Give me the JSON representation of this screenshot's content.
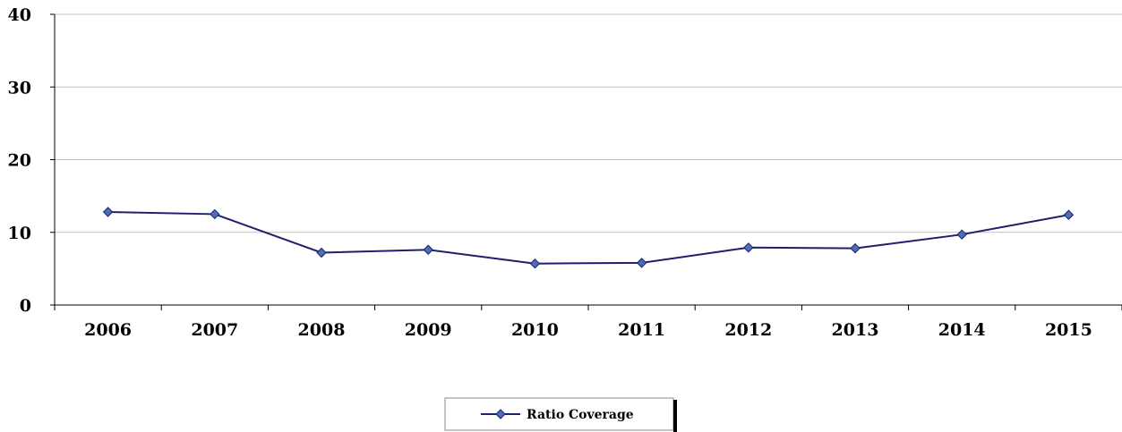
{
  "chart_data": {
    "type": "line",
    "categories": [
      "2006",
      "2007",
      "2008",
      "2009",
      "2010",
      "2011",
      "2012",
      "2013",
      "2014",
      "2015"
    ],
    "series": [
      {
        "name": "Ratio Coverage",
        "values": [
          12.8,
          12.5,
          7.2,
          7.6,
          5.7,
          5.8,
          7.9,
          7.8,
          9.7,
          12.4
        ]
      }
    ],
    "title": "",
    "xlabel": "",
    "ylabel": "",
    "ylim": [
      0,
      40
    ],
    "yticks": [
      "0",
      "10",
      "20",
      "30",
      "40"
    ],
    "grid": "horizontal",
    "legend": "bottom-center",
    "line_color": "#1f1f6b",
    "marker_color": "#4a6fb5",
    "grid_color": "#c0c0c0"
  }
}
